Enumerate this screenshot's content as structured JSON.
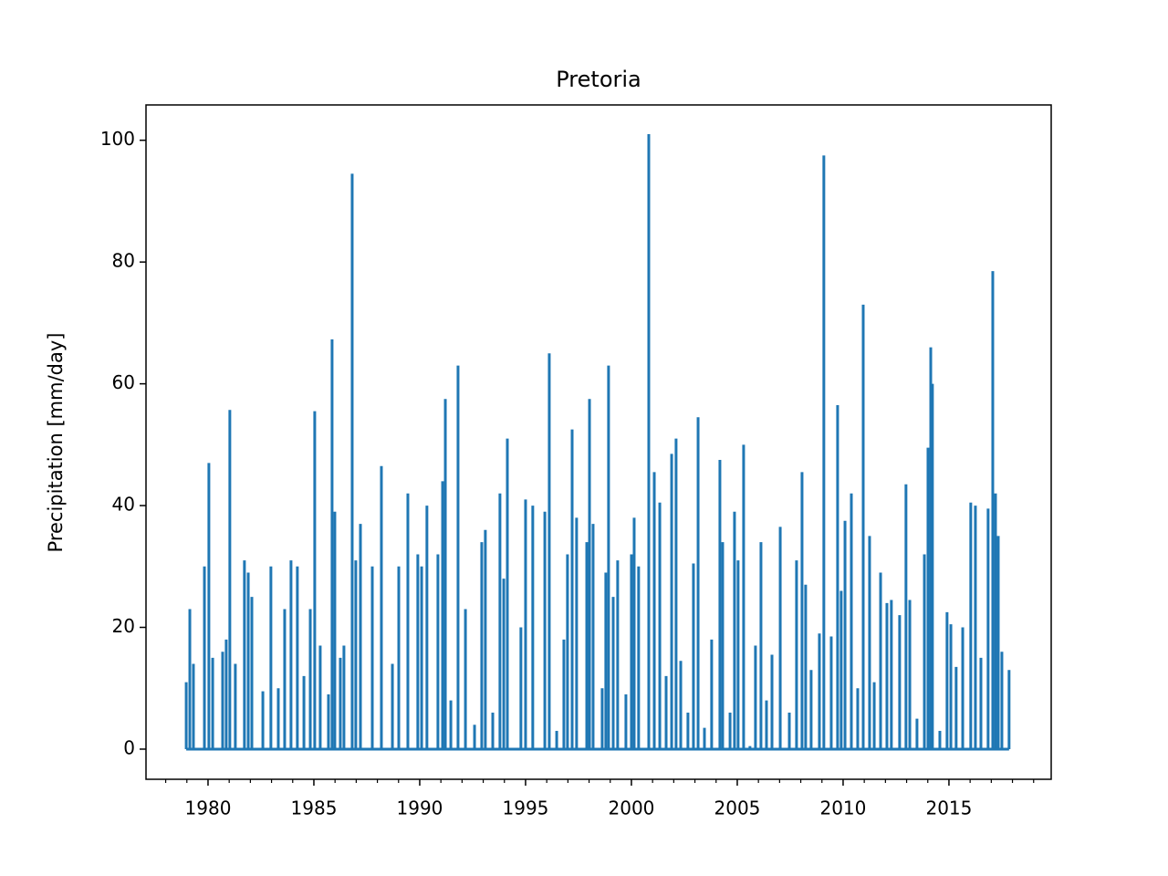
{
  "chart_data": {
    "type": "spike",
    "title": "Pretoria",
    "y_label": "Precipitation [mm/day]",
    "color": "#1f77b4",
    "xlim": [
      1977.07,
      2019.83
    ],
    "ylim": [
      -4.95,
      105.8
    ],
    "xticks": [
      1980,
      1985,
      1990,
      1995,
      2000,
      2005,
      2010,
      2015
    ],
    "xminorticks": [
      1978,
      1979,
      1981,
      1982,
      1983,
      1984,
      1986,
      1987,
      1988,
      1989,
      1991,
      1992,
      1993,
      1994,
      1996,
      1997,
      1998,
      1999,
      2001,
      2002,
      2003,
      2004,
      2006,
      2007,
      2008,
      2009,
      2011,
      2012,
      2013,
      2014,
      2016,
      2017,
      2018,
      2019
    ],
    "yticks": [
      0,
      20,
      40,
      60,
      80,
      100
    ],
    "x": [
      1978.97,
      1979.14,
      1979.31,
      1979.83,
      1980.04,
      1980.22,
      1980.69,
      1980.86,
      1981.03,
      1981.29,
      1981.72,
      1981.9,
      1982.07,
      1982.59,
      1982.97,
      1983.32,
      1983.62,
      1983.92,
      1984.22,
      1984.53,
      1984.83,
      1985.04,
      1985.3,
      1985.69,
      1985.86,
      1985.99,
      1986.25,
      1986.42,
      1986.81,
      1986.98,
      1987.2,
      1987.76,
      1988.19,
      1988.71,
      1989.01,
      1989.44,
      1989.91,
      1990.09,
      1990.34,
      1990.86,
      1991.08,
      1991.21,
      1991.47,
      1991.81,
      1992.16,
      1992.59,
      1992.93,
      1993.1,
      1993.45,
      1993.79,
      1993.97,
      1994.14,
      1994.78,
      1995.0,
      1995.34,
      1995.91,
      1996.12,
      1996.47,
      1996.81,
      1996.98,
      1997.2,
      1997.41,
      1997.89,
      1998.02,
      1998.19,
      1998.62,
      1998.79,
      1998.92,
      1999.14,
      1999.35,
      1999.74,
      2000.0,
      2000.13,
      2000.34,
      2000.82,
      2001.08,
      2001.34,
      2001.64,
      2001.9,
      2002.11,
      2002.33,
      2002.67,
      2002.93,
      2003.15,
      2003.45,
      2003.79,
      2004.18,
      2004.31,
      2004.66,
      2004.87,
      2005.04,
      2005.3,
      2005.6,
      2005.86,
      2006.12,
      2006.38,
      2006.64,
      2007.03,
      2007.46,
      2007.8,
      2008.06,
      2008.23,
      2008.49,
      2008.88,
      2009.09,
      2009.44,
      2009.74,
      2009.91,
      2010.09,
      2010.39,
      2010.69,
      2010.95,
      2011.25,
      2011.47,
      2011.77,
      2012.07,
      2012.28,
      2012.67,
      2012.97,
      2013.15,
      2013.49,
      2013.84,
      2014.01,
      2014.14,
      2014.22,
      2014.57,
      2014.91,
      2015.09,
      2015.34,
      2015.65,
      2016.03,
      2016.25,
      2016.51,
      2016.85,
      2017.07,
      2017.2,
      2017.33,
      2017.5,
      2017.84
    ],
    "values": [
      11,
      23,
      14,
      30,
      47,
      15,
      16,
      18,
      55.7,
      14,
      31,
      29,
      25,
      9.5,
      30,
      10,
      23,
      31,
      30,
      12,
      23,
      55.5,
      17,
      9,
      67.3,
      39,
      15,
      17,
      94.5,
      31,
      37,
      30,
      46.5,
      14,
      30,
      42,
      32,
      30,
      40,
      32,
      44,
      57.5,
      8,
      63,
      23,
      4,
      34,
      36,
      6,
      42,
      28,
      51,
      20,
      41,
      40,
      39,
      65,
      3,
      18,
      32,
      52.5,
      38,
      34,
      57.5,
      37,
      10,
      29,
      63,
      25,
      31,
      9,
      32,
      38,
      30,
      101,
      45.5,
      40.5,
      12,
      48.5,
      51,
      14.5,
      6,
      30.5,
      54.5,
      3.5,
      18,
      47.5,
      34,
      6,
      39,
      31,
      50,
      0.5,
      17,
      34,
      8,
      15.5,
      36.5,
      6,
      31,
      45.5,
      27,
      13,
      19,
      97.5,
      18.5,
      56.5,
      26,
      37.5,
      42,
      10,
      73,
      35,
      11,
      29,
      24,
      24.5,
      22,
      43.5,
      24.5,
      5,
      32,
      49.5,
      66,
      60,
      3,
      22.5,
      20.5,
      13.5,
      20,
      40.5,
      40,
      15,
      39.5,
      78.5,
      42,
      35,
      16,
      13
    ]
  }
}
